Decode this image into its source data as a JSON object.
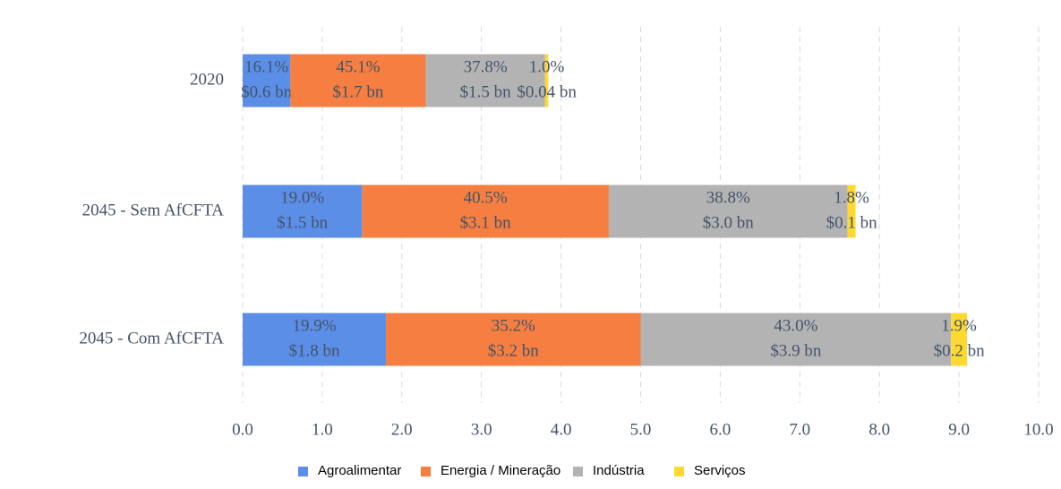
{
  "chart_data": {
    "type": "bar",
    "orientation": "horizontal",
    "stacked": true,
    "categories": [
      "2020",
      "2045 - Sem AfCFTA",
      "2045 - Com AfCFTA"
    ],
    "series": [
      {
        "name": "Agroalimentar",
        "color": "#5b8ee6",
        "values": [
          0.6,
          1.5,
          1.8
        ],
        "share_labels": [
          "16.1%",
          "19.0%",
          "19.9%"
        ],
        "value_labels": [
          "$0.6 bn",
          "$1.5 bn",
          "$1.8 bn"
        ]
      },
      {
        "name": "Energia / Mineração",
        "color": "#f57e40",
        "values": [
          1.7,
          3.1,
          3.2
        ],
        "share_labels": [
          "45.1%",
          "40.5%",
          "35.2%"
        ],
        "value_labels": [
          "$1.7 bn",
          "$3.1 bn",
          "$3.2 bn"
        ]
      },
      {
        "name": "Indústria",
        "color": "#b3b3b3",
        "values": [
          1.5,
          3.0,
          3.9
        ],
        "share_labels": [
          "37.8%",
          "38.8%",
          "43.0%"
        ],
        "value_labels": [
          "$1.5 bn",
          "$3.0 bn",
          "$3.9 bn"
        ]
      },
      {
        "name": "Serviços",
        "color": "#ffd92f",
        "values": [
          0.04,
          0.1,
          0.2
        ],
        "share_labels": [
          "1.0%",
          "1.8%",
          "1.9%"
        ],
        "value_labels": [
          "$0.04 bn",
          "$0.1 bn",
          "$0.2 bn"
        ]
      }
    ],
    "xlim": [
      0,
      10
    ],
    "xticks": [
      {
        "value": 0,
        "label": "0.0"
      },
      {
        "value": 1,
        "label": "1.0"
      },
      {
        "value": 2,
        "label": "2.0"
      },
      {
        "value": 3,
        "label": "3.0"
      },
      {
        "value": 4,
        "label": "4.0"
      },
      {
        "value": 5,
        "label": "5.0"
      },
      {
        "value": 6,
        "label": "6.0"
      },
      {
        "value": 7,
        "label": "7.0"
      },
      {
        "value": 8,
        "label": "8.0"
      },
      {
        "value": 9,
        "label": "9.0"
      },
      {
        "value": 10,
        "label": "10.0"
      }
    ],
    "grid": true,
    "legend": "bottom"
  }
}
